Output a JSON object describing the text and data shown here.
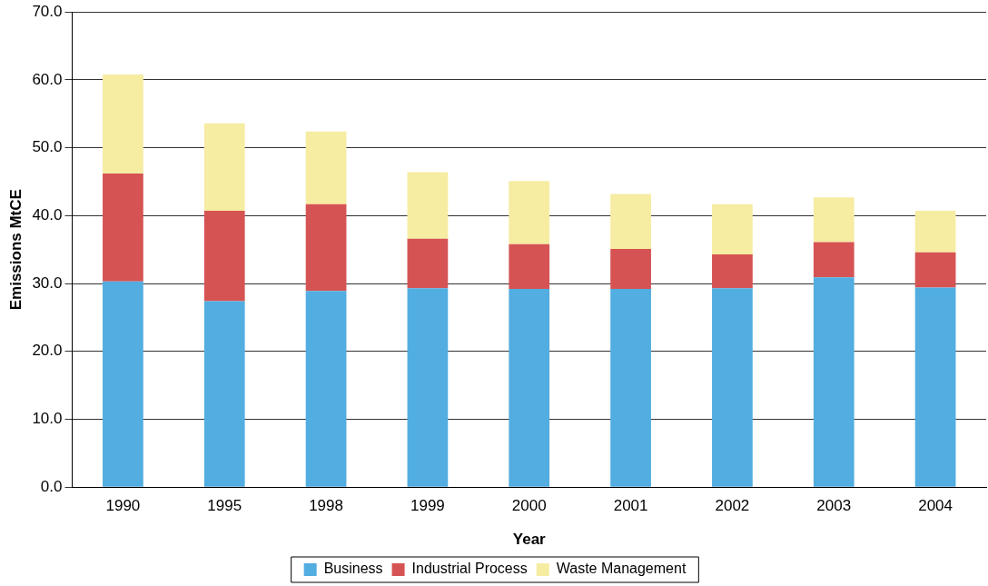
{
  "chart_data": {
    "type": "bar",
    "stacked": true,
    "xlabel": "Year",
    "ylabel": "Emissions MtCE",
    "categories": [
      "1990",
      "1995",
      "1998",
      "1999",
      "2000",
      "2001",
      "2002",
      "2003",
      "2004"
    ],
    "series": [
      {
        "name": "Business",
        "color": "#52ade0",
        "values": [
          30.3,
          27.4,
          28.9,
          29.3,
          29.2,
          29.2,
          29.3,
          30.9,
          29.4
        ]
      },
      {
        "name": "Industrial Process",
        "color": "#d65353",
        "values": [
          15.9,
          13.3,
          12.8,
          7.3,
          6.6,
          5.9,
          5.0,
          5.2,
          5.2
        ]
      },
      {
        "name": "Waste Management",
        "color": "#f6eca2",
        "values": [
          14.6,
          12.9,
          10.7,
          9.8,
          9.3,
          8.1,
          7.4,
          6.6,
          6.1
        ]
      }
    ],
    "ylim": [
      0,
      70
    ],
    "yticks": [
      {
        "value": 0,
        "label": "0.0"
      },
      {
        "value": 10,
        "label": "10.0"
      },
      {
        "value": 20,
        "label": "20.0"
      },
      {
        "value": 30,
        "label": "30.0"
      },
      {
        "value": 40,
        "label": "40.0"
      },
      {
        "value": 50,
        "label": "50.0"
      },
      {
        "value": 60,
        "label": "60.0"
      },
      {
        "value": 70,
        "label": "70.0"
      }
    ],
    "grid": "y",
    "legend": "bottom"
  }
}
